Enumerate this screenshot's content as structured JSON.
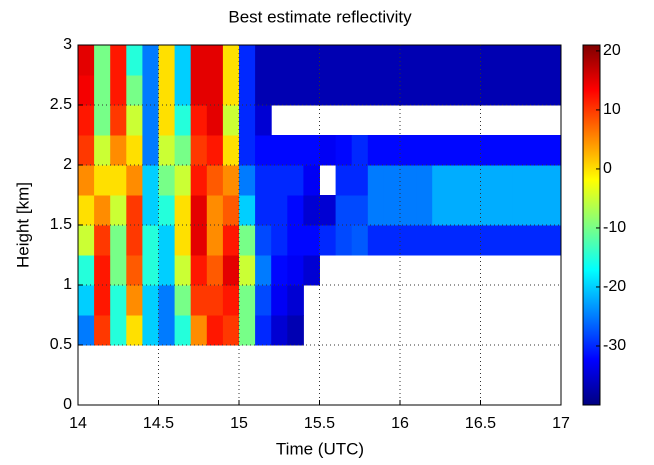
{
  "chart_data": {
    "type": "heatmap",
    "title": "Best estimate reflectivity",
    "xlabel": "Time (UTC)",
    "ylabel": "Height [km]",
    "xlim": [
      14,
      17
    ],
    "ylim": [
      0,
      3
    ],
    "xticks": [
      14,
      14.5,
      15,
      15.5,
      16,
      16.5,
      17
    ],
    "yticks": [
      0,
      0.5,
      1,
      1.5,
      2,
      2.5,
      3
    ],
    "clim": [
      -40,
      21
    ],
    "cticks": [
      -30,
      -20,
      -10,
      0,
      10,
      20
    ],
    "colormap": "jet",
    "grid": true,
    "xbins": [
      14,
      14.1,
      14.2,
      14.3,
      14.4,
      14.5,
      14.6,
      14.7,
      14.8,
      14.9,
      15,
      15.1,
      15.2,
      15.3,
      15.4,
      15.5,
      15.6,
      15.7,
      15.8,
      15.9,
      16,
      16.1,
      16.2,
      16.3,
      16.4,
      16.5,
      16.6,
      16.7,
      16.8,
      16.9,
      17
    ],
    "ybins": [
      0.5,
      0.75,
      1,
      1.25,
      1.5,
      1.75,
      2,
      2.25,
      2.5,
      2.75,
      3
    ],
    "z": [
      [
        -25,
        10,
        -15,
        0,
        -20,
        -25,
        -15,
        5,
        12,
        10,
        -10,
        -30,
        -35,
        -37,
        null,
        null,
        null,
        null,
        null,
        null,
        null,
        null,
        null,
        null,
        null,
        null,
        null,
        null,
        null,
        null
      ],
      [
        -20,
        12,
        -15,
        5,
        -20,
        -25,
        -10,
        10,
        10,
        12,
        -10,
        -28,
        -33,
        -35,
        null,
        null,
        null,
        null,
        null,
        null,
        null,
        null,
        null,
        null,
        null,
        null,
        null,
        null,
        null,
        null
      ],
      [
        -15,
        12,
        -10,
        8,
        -15,
        -20,
        -5,
        12,
        8,
        15,
        -5,
        -25,
        -32,
        -33,
        -35,
        null,
        null,
        null,
        null,
        null,
        null,
        null,
        null,
        null,
        null,
        null,
        null,
        null,
        null,
        null
      ],
      [
        -5,
        10,
        -10,
        10,
        -15,
        -20,
        0,
        15,
        5,
        12,
        -10,
        -28,
        -30,
        -32,
        -32,
        -30,
        -28,
        -27,
        -30,
        -30,
        -30,
        -30,
        -30,
        -30,
        -30,
        -30,
        -30,
        -30,
        -30,
        -30
      ],
      [
        0,
        5,
        -5,
        10,
        -20,
        -15,
        0,
        15,
        5,
        8,
        -20,
        -30,
        -30,
        -32,
        -35,
        -35,
        -28,
        -28,
        -25,
        -25,
        -25,
        -25,
        -22,
        -22,
        -22,
        -22,
        -22,
        -22,
        -22,
        -22
      ],
      [
        5,
        0,
        0,
        5,
        -20,
        -10,
        -5,
        12,
        8,
        5,
        -25,
        -30,
        -30,
        -30,
        -33,
        null,
        -30,
        -30,
        -25,
        -25,
        -25,
        -25,
        -22,
        -22,
        -22,
        -22,
        -22,
        -22,
        -22,
        -22
      ],
      [
        10,
        -5,
        5,
        0,
        -25,
        -5,
        -10,
        10,
        12,
        0,
        -30,
        -32,
        -32,
        -32,
        -32,
        -33,
        -32,
        -30,
        -32,
        -32,
        -32,
        -32,
        -32,
        -32,
        -32,
        -32,
        -32,
        -32,
        -32,
        -32
      ],
      [
        12,
        -10,
        10,
        -5,
        -25,
        0,
        -15,
        12,
        15,
        -5,
        -30,
        -35,
        null,
        null,
        null,
        null,
        null,
        null,
        null,
        null,
        null,
        null,
        null,
        null,
        null,
        null,
        null,
        null,
        null,
        null
      ],
      [
        14,
        -10,
        12,
        -10,
        -25,
        0,
        -20,
        15,
        15,
        0,
        -30,
        -37,
        -37,
        -37,
        -37,
        -37,
        -37,
        -37,
        -37,
        -37,
        -37,
        -37,
        -37,
        -37,
        -37,
        -37,
        -37,
        -37,
        -37,
        -37
      ],
      [
        15,
        -10,
        12,
        -15,
        -25,
        0,
        -20,
        15,
        15,
        0,
        -30,
        -37,
        -37,
        -37,
        -37,
        -37,
        -37,
        -37,
        -37,
        -37,
        -37,
        -37,
        -37,
        -37,
        -37,
        -37,
        -37,
        -37,
        -37,
        -37
      ]
    ]
  }
}
